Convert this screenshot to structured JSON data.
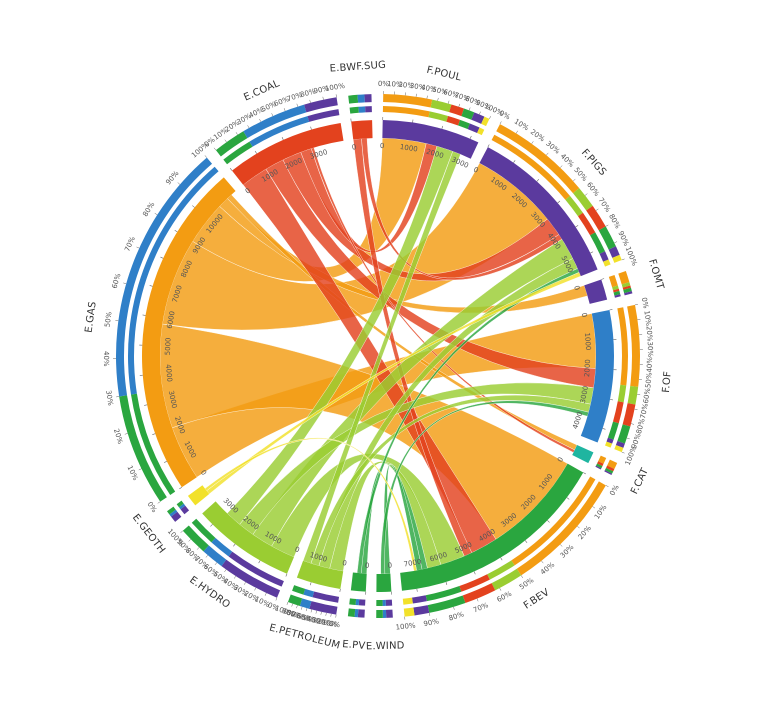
{
  "colors": {
    "orange": "#f39c12",
    "red": "#e3421e",
    "purple": "#5b3a9e",
    "blue": "#2f7fc8",
    "green": "#2aa63f",
    "lightgreen": "#9acd32",
    "yellow": "#f2e12a",
    "teal": "#1fb5a0",
    "white": "#ffffff"
  },
  "chart_data": {
    "type": "chord",
    "segments": [
      {
        "id": "F.POUL",
        "label": "F.POUL",
        "size": 3300,
        "color": "purple",
        "ticks": [
          "0",
          "1000",
          "2000",
          "3000"
        ],
        "composition": [
          [
            "orange",
            0.45
          ],
          [
            "lightgreen",
            0.18
          ],
          [
            "red",
            0.12
          ],
          [
            "green",
            0.1
          ],
          [
            "purple",
            0.1
          ],
          [
            "yellow",
            0.05
          ]
        ]
      },
      {
        "id": "F.PIGS",
        "label": "F.PIGS",
        "size": 5600,
        "color": "purple",
        "ticks": [
          "0",
          "1000",
          "2000",
          "3000",
          "4000",
          "5000"
        ],
        "composition": [
          [
            "orange",
            0.55
          ],
          [
            "lightgreen",
            0.12
          ],
          [
            "red",
            0.13
          ],
          [
            "green",
            0.12
          ],
          [
            "purple",
            0.05
          ],
          [
            "yellow",
            0.03
          ]
        ]
      },
      {
        "id": "F.OMT",
        "label": "F.OMT",
        "size": 700,
        "color": "purple",
        "ticks": [
          "0"
        ],
        "composition": [
          [
            "orange",
            0.5
          ],
          [
            "lightgreen",
            0.15
          ],
          [
            "red",
            0.1
          ],
          [
            "green",
            0.15
          ],
          [
            "purple",
            0.1
          ]
        ]
      },
      {
        "id": "F.OF",
        "label": "F.OF",
        "size": 4500,
        "color": "blue",
        "ticks": [
          "0",
          "1000",
          "2000",
          "3000",
          "4000"
        ],
        "composition": [
          [
            "orange",
            0.55
          ],
          [
            "lightgreen",
            0.12
          ],
          [
            "red",
            0.15
          ],
          [
            "green",
            0.12
          ],
          [
            "purple",
            0.03
          ],
          [
            "yellow",
            0.03
          ]
        ]
      },
      {
        "id": "F.CAT",
        "label": "F.CAT",
        "size": 400,
        "color": "teal",
        "ticks": [],
        "composition": [
          [
            "orange",
            0.5
          ],
          [
            "red",
            0.2
          ],
          [
            "green",
            0.2
          ],
          [
            "purple",
            0.1
          ]
        ]
      },
      {
        "id": "F.BEV",
        "label": "F.BEV",
        "size": 7500,
        "color": "green",
        "ticks": [
          "0",
          "1000",
          "2000",
          "3000",
          "4000",
          "5000",
          "6000",
          "7000"
        ],
        "composition": [
          [
            "orange",
            0.5
          ],
          [
            "lightgreen",
            0.12
          ],
          [
            "red",
            0.13
          ],
          [
            "green",
            0.15
          ],
          [
            "purple",
            0.06
          ],
          [
            "yellow",
            0.04
          ]
        ]
      },
      {
        "id": "E.WIND",
        "label": "E.WIND",
        "size": 500,
        "color": "green",
        "ticks": [
          "0"
        ],
        "composition": [
          [
            "purple",
            0.4
          ],
          [
            "blue",
            0.2
          ],
          [
            "green",
            0.4
          ]
        ]
      },
      {
        "id": "E.PV",
        "label": "E.PV",
        "size": 500,
        "color": "green",
        "ticks": [
          "0"
        ],
        "composition": [
          [
            "purple",
            0.4
          ],
          [
            "blue",
            0.2
          ],
          [
            "green",
            0.4
          ]
        ]
      },
      {
        "id": "E.PETROLEUM",
        "label": "E.PETROLEUM",
        "size": 1500,
        "color": "lightgreen",
        "ticks": [
          "0",
          "1000"
        ],
        "composition": [
          [
            "purple",
            0.55
          ],
          [
            "blue",
            0.2
          ],
          [
            "green",
            0.25
          ]
        ]
      },
      {
        "id": "E.HYDRO",
        "label": "E.HYDRO",
        "size": 3500,
        "color": "lightgreen",
        "ticks": [
          "0",
          "1000",
          "2000",
          "3000"
        ],
        "composition": [
          [
            "purple",
            0.55
          ],
          [
            "blue",
            0.2
          ],
          [
            "green",
            0.25
          ]
        ]
      },
      {
        "id": "E.GEOTH",
        "label": "E.GEOTH",
        "size": 400,
        "color": "yellow",
        "ticks": [],
        "composition": [
          [
            "purple",
            0.5
          ],
          [
            "blue",
            0.2
          ],
          [
            "green",
            0.3
          ]
        ]
      },
      {
        "id": "E.GAS",
        "label": "E.GAS",
        "size": 11400,
        "color": "orange",
        "ticks": [
          "0",
          "1000",
          "2000",
          "3000",
          "4000",
          "5000",
          "6000",
          "7000",
          "8000",
          "9000",
          "10000"
        ],
        "composition": [
          [
            "green",
            0.3
          ],
          [
            "blue",
            0.7
          ]
        ]
      },
      {
        "id": "E.COAL",
        "label": "E.COAL",
        "size": 4000,
        "color": "red",
        "ticks": [
          "0",
          "1000",
          "2000",
          "3000"
        ],
        "composition": [
          [
            "green",
            0.25
          ],
          [
            "blue",
            0.5
          ],
          [
            "purple",
            0.25
          ]
        ]
      },
      {
        "id": "E.BWF.SUG",
        "label": "E.BWF.SUG",
        "size": 700,
        "color": "red",
        "ticks": [
          "0"
        ],
        "composition": [
          [
            "green",
            0.4
          ],
          [
            "blue",
            0.3
          ],
          [
            "purple",
            0.3
          ]
        ]
      }
    ],
    "flows": [
      {
        "from": "E.GAS",
        "to": "F.OF",
        "value": 2000
      },
      {
        "from": "E.GAS",
        "to": "F.BEV",
        "value": 3800
      },
      {
        "from": "E.GAS",
        "to": "F.PIGS",
        "value": 3200
      },
      {
        "from": "E.GAS",
        "to": "F.POUL",
        "value": 1600
      },
      {
        "from": "E.GAS",
        "to": "F.OMT",
        "value": 400
      },
      {
        "from": "E.GAS",
        "to": "F.CAT",
        "value": 200
      },
      {
        "from": "E.COAL",
        "to": "F.BEV",
        "value": 1000
      },
      {
        "from": "E.COAL",
        "to": "F.OF",
        "value": 700
      },
      {
        "from": "E.COAL",
        "to": "F.PIGS",
        "value": 700
      },
      {
        "from": "E.COAL",
        "to": "F.POUL",
        "value": 400
      },
      {
        "from": "E.COAL",
        "to": "F.CAT",
        "value": 100
      },
      {
        "from": "E.BWF.SUG",
        "to": "F.BEV",
        "value": 300
      },
      {
        "from": "E.BWF.SUG",
        "to": "F.PIGS",
        "value": 200
      },
      {
        "from": "E.HYDRO",
        "to": "F.BEV",
        "value": 900
      },
      {
        "from": "E.HYDRO",
        "to": "F.PIGS",
        "value": 800
      },
      {
        "from": "E.HYDRO",
        "to": "F.OF",
        "value": 600
      },
      {
        "from": "E.HYDRO",
        "to": "F.POUL",
        "value": 600
      },
      {
        "from": "E.PETROLEUM",
        "to": "F.BEV",
        "value": 500
      },
      {
        "from": "E.PETROLEUM",
        "to": "F.PIGS",
        "value": 400
      },
      {
        "from": "E.PETROLEUM",
        "to": "F.OF",
        "value": 300
      },
      {
        "from": "E.PETROLEUM",
        "to": "F.POUL",
        "value": 300
      },
      {
        "from": "E.PV",
        "to": "F.BEV",
        "value": 200
      },
      {
        "from": "E.PV",
        "to": "F.PIGS",
        "value": 150
      },
      {
        "from": "E.WIND",
        "to": "F.BEV",
        "value": 200
      },
      {
        "from": "E.WIND",
        "to": "F.OF",
        "value": 150
      },
      {
        "from": "E.GEOTH",
        "to": "F.PIGS",
        "value": 150
      },
      {
        "from": "E.GEOTH",
        "to": "F.BEV",
        "value": 100
      }
    ]
  }
}
